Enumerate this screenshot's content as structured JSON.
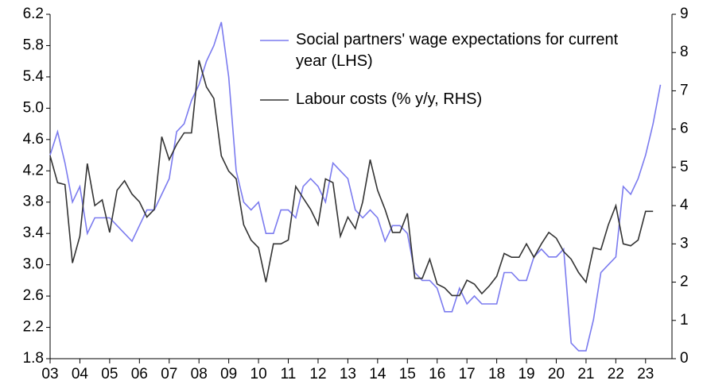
{
  "chart_data": {
    "type": "line",
    "categories": [
      "03",
      null,
      null,
      null,
      "04",
      null,
      null,
      null,
      "05",
      null,
      null,
      null,
      "06",
      null,
      null,
      null,
      "07",
      null,
      null,
      null,
      "08",
      null,
      null,
      null,
      "09",
      null,
      null,
      null,
      "10",
      null,
      null,
      null,
      "11",
      null,
      null,
      null,
      "12",
      null,
      null,
      null,
      "13",
      null,
      null,
      null,
      "14",
      null,
      null,
      null,
      "15",
      null,
      null,
      null,
      "16",
      null,
      null,
      null,
      "17",
      null,
      null,
      null,
      "18",
      null,
      null,
      null,
      "19",
      null,
      null,
      null,
      "20",
      null,
      null,
      null,
      "21",
      null,
      null,
      null,
      "22",
      null,
      null,
      null,
      "23",
      null,
      null
    ],
    "series": [
      {
        "name": "Social partners' wage expectations for current year (LHS)",
        "color": "#7b7bef",
        "values": [
          4.4,
          4.7,
          4.3,
          3.8,
          4.0,
          3.4,
          3.6,
          3.6,
          3.6,
          3.5,
          3.4,
          3.3,
          3.5,
          3.7,
          3.7,
          3.9,
          4.1,
          4.7,
          4.8,
          5.1,
          5.3,
          5.6,
          5.8,
          6.1,
          5.4,
          4.2,
          3.8,
          3.7,
          3.8,
          3.4,
          3.4,
          3.7,
          3.7,
          3.6,
          4.0,
          4.1,
          4.0,
          3.8,
          4.3,
          4.2,
          4.1,
          3.7,
          3.6,
          3.7,
          3.6,
          3.3,
          3.5,
          3.5,
          3.4,
          2.9,
          2.8,
          2.8,
          2.7,
          2.4,
          2.4,
          2.7,
          2.5,
          2.6,
          2.5,
          2.5,
          2.5,
          2.9,
          2.9,
          2.8,
          2.8,
          3.1,
          3.2,
          3.1,
          3.1,
          3.2,
          2.0,
          1.9,
          1.9,
          2.3,
          2.9,
          3.0,
          3.1,
          4.0,
          3.9,
          4.1,
          4.4,
          4.8,
          5.3
        ]
      },
      {
        "name": "Labour costs (% y/y, RHS)",
        "color": "#333333",
        "axis": "y2",
        "values": [
          5.3,
          4.6,
          4.55,
          2.5,
          3.2,
          5.1,
          4.0,
          4.15,
          3.3,
          4.4,
          4.65,
          4.3,
          4.1,
          3.7,
          3.9,
          5.8,
          5.2,
          5.6,
          5.9,
          5.9,
          7.8,
          7.1,
          6.8,
          5.3,
          4.9,
          4.7,
          3.5,
          3.1,
          2.9,
          2.0,
          3.0,
          3.0,
          3.1,
          4.5,
          4.2,
          3.9,
          3.5,
          4.7,
          4.6,
          3.2,
          3.7,
          3.4,
          4.1,
          5.2,
          4.4,
          3.9,
          3.3,
          3.3,
          3.8,
          2.1,
          2.1,
          2.6,
          1.95,
          1.85,
          1.65,
          1.65,
          2.05,
          1.95,
          1.7,
          1.9,
          2.15,
          2.75,
          2.65,
          2.65,
          3.0,
          2.65,
          3.0,
          3.3,
          3.15,
          2.8,
          2.6,
          2.25,
          2.0,
          2.9,
          2.85,
          3.5,
          4.0,
          3.0,
          2.95,
          3.1,
          3.85,
          3.85,
          null
        ]
      }
    ],
    "ylim": [
      1.8,
      6.2
    ],
    "yticks": [
      1.8,
      2.2,
      2.6,
      {
        "value": 3,
        "label": "3.0"
      },
      3.4,
      3.8,
      4.2,
      4.6,
      {
        "value": 5,
        "label": "5.0"
      },
      5.4,
      5.8,
      6.2
    ],
    "y2lim": [
      0,
      9
    ],
    "y2ticks": [
      0,
      1,
      2,
      3,
      4,
      5,
      6,
      7,
      8,
      9
    ],
    "legend": "upper right"
  }
}
